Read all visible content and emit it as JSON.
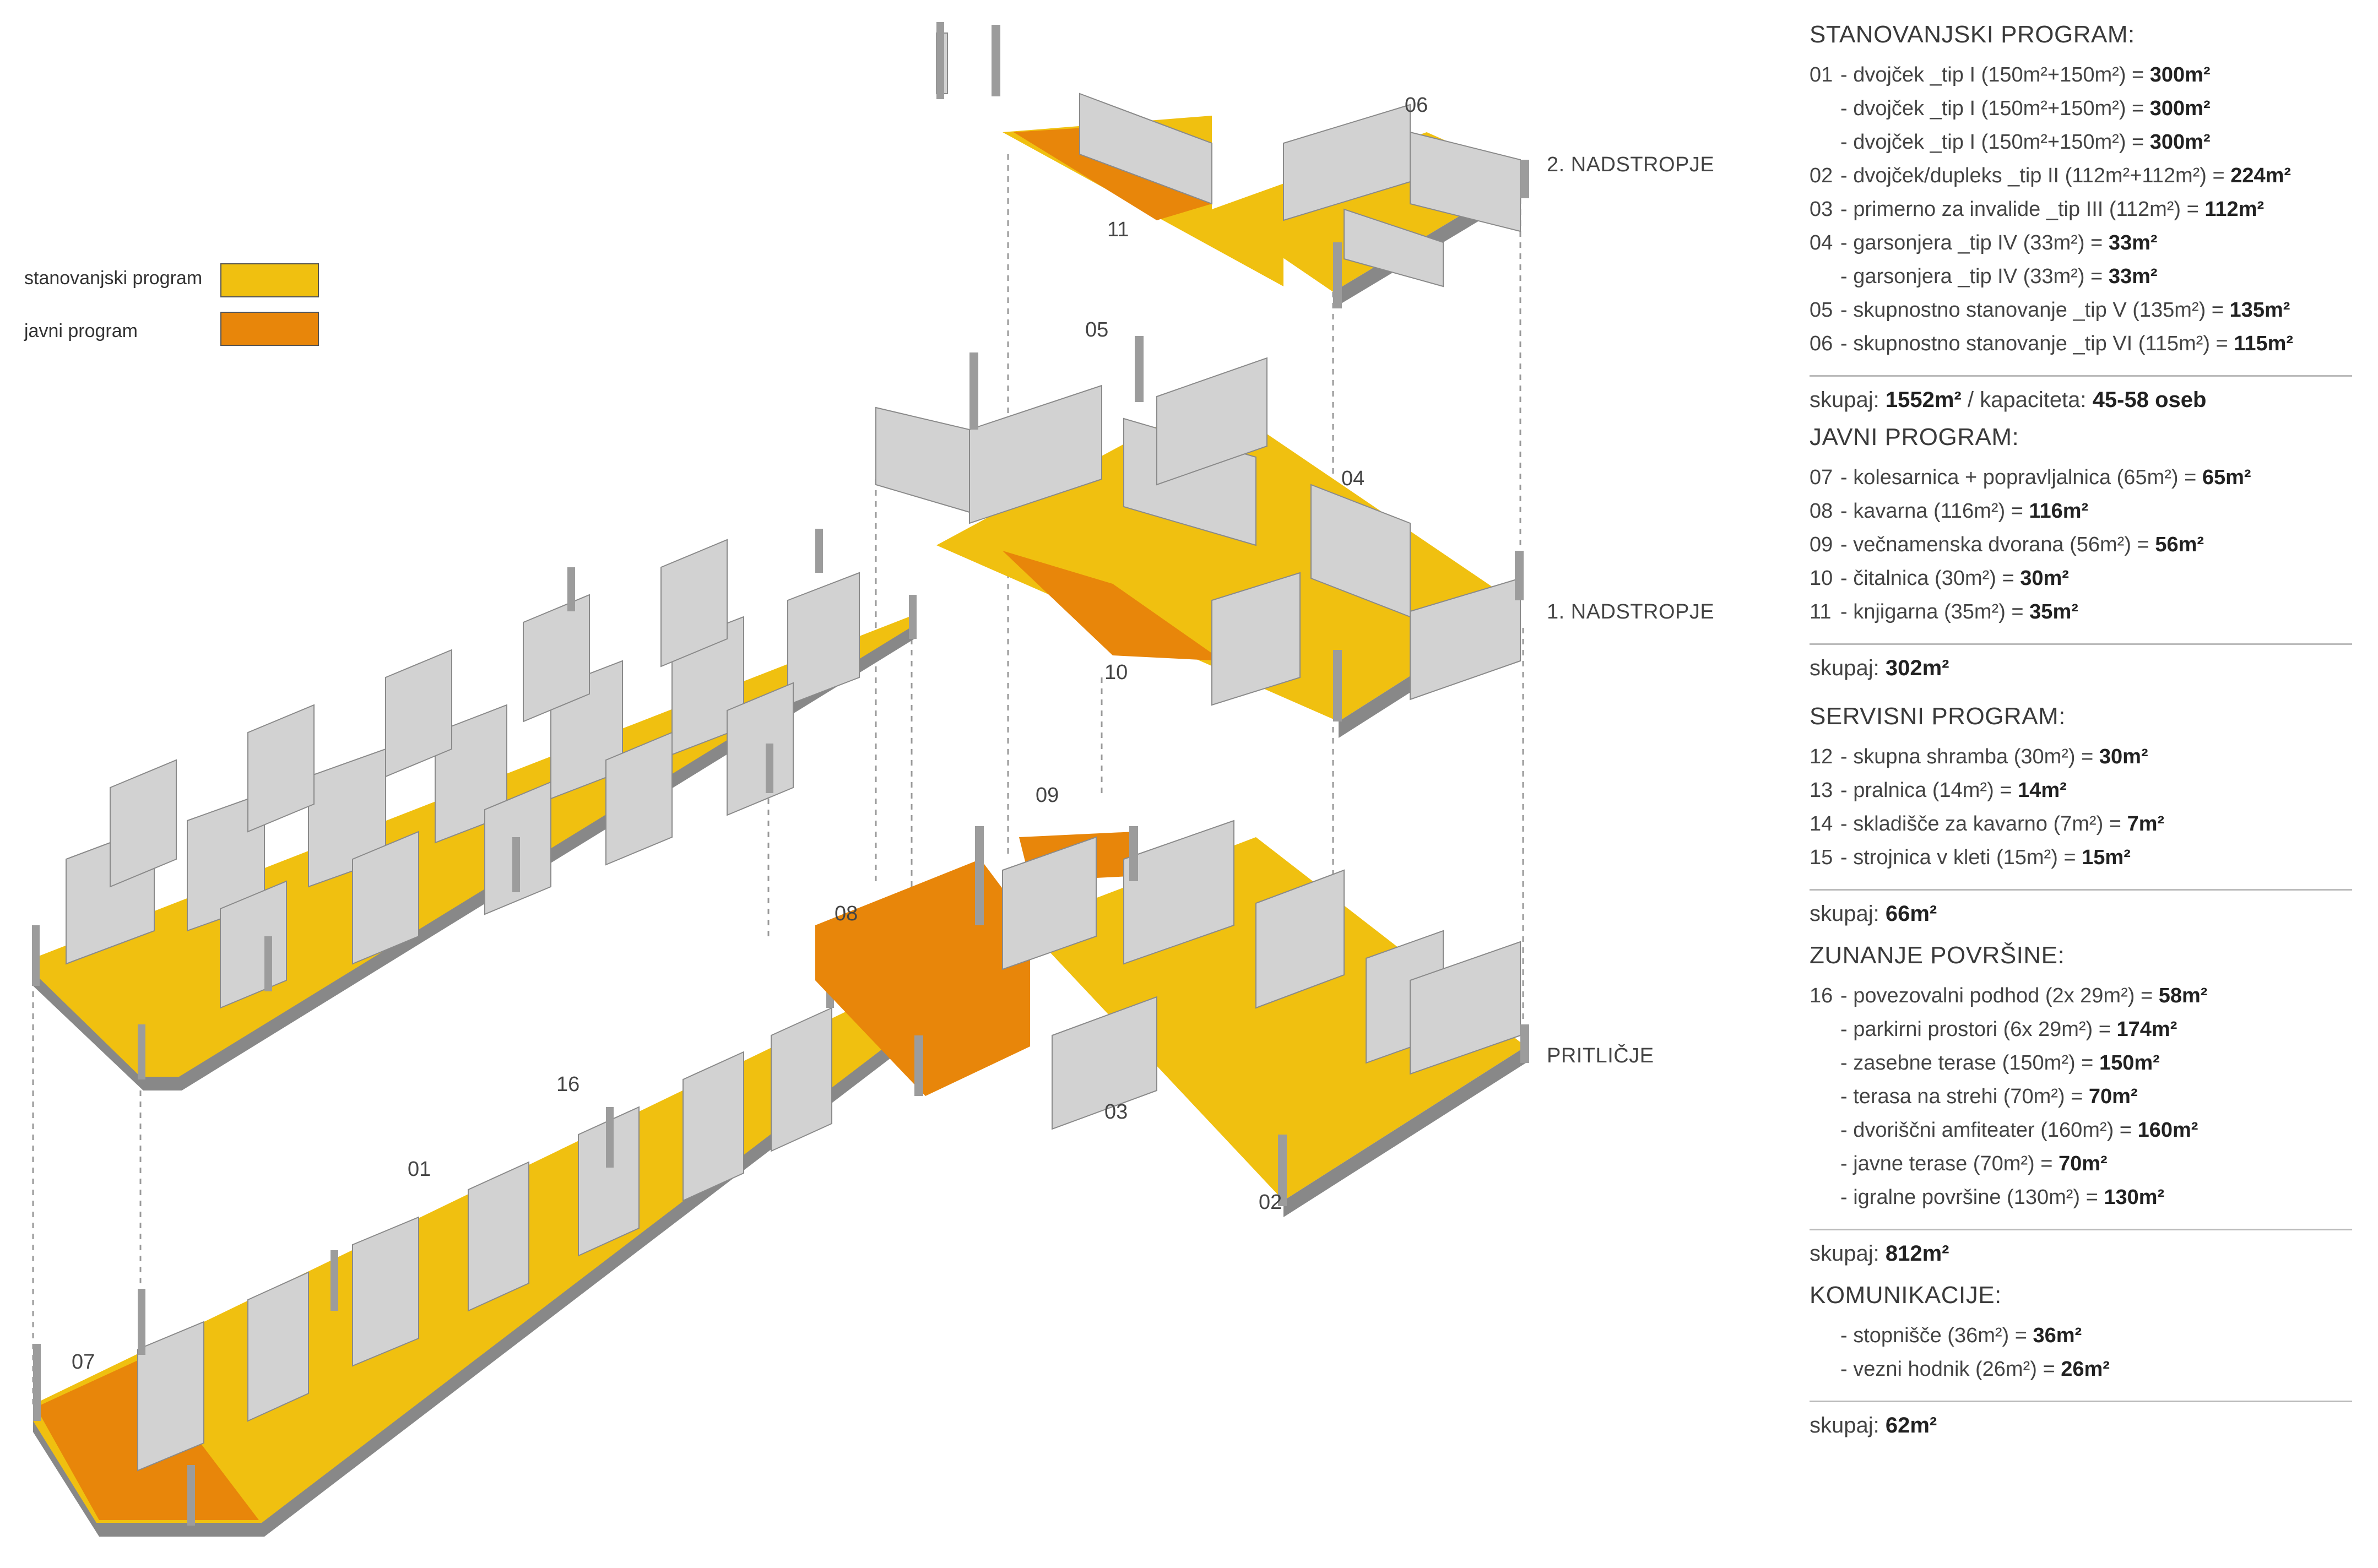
{
  "legend": {
    "items": [
      {
        "label": "stanovanjski program",
        "color": "#f0c010"
      },
      {
        "label": "javni program",
        "color": "#e8860a"
      }
    ]
  },
  "levels": {
    "second": "2. NADSTROPJE",
    "first": "1. NADSTROPJE",
    "ground": "PRITLIČJE"
  },
  "unit_numbers": [
    "01",
    "02",
    "03",
    "04",
    "05",
    "06",
    "07",
    "08",
    "09",
    "10",
    "11",
    "16"
  ],
  "colors": {
    "residential": "#f0c010",
    "public": "#e8860a",
    "wall": "#cfcfcf",
    "wall_dark": "#9c9c9c",
    "floor_edge": "#888888"
  },
  "schedule": {
    "housing": {
      "title": "STANOVANJSKI PROGRAM:",
      "rows": [
        {
          "num": "01",
          "text": "- dvojček _tip I (150m²+150m²) = ",
          "value": "300m²"
        },
        {
          "num": "",
          "text": "- dvojček _tip I (150m²+150m²) = ",
          "value": "300m²"
        },
        {
          "num": "",
          "text": "- dvojček _tip I (150m²+150m²) = ",
          "value": "300m²"
        },
        {
          "num": "02",
          "text": "- dvojček/dupleks _tip II (112m²+112m²) = ",
          "value": "224m²"
        },
        {
          "num": "03",
          "text": "- primerno za invalide _tip III (112m²) = ",
          "value": "112m²"
        },
        {
          "num": "04",
          "text": "- garsonjera _tip IV (33m²) = ",
          "value": "33m²"
        },
        {
          "num": "",
          "text": "- garsonjera _tip IV (33m²) = ",
          "value": "33m²"
        },
        {
          "num": "05",
          "text": "- skupnostno stanovanje _tip V (135m²) = ",
          "value": "135m²"
        },
        {
          "num": "06",
          "text": "- skupnostno stanovanje _tip VI (115m²) = ",
          "value": "115m²"
        }
      ],
      "total_label": "skupaj: ",
      "total_value": "1552m²",
      "total_extra": " / kapaciteta: ",
      "total_extra_value": "45-58 oseb"
    },
    "public": {
      "title": "JAVNI PROGRAM:",
      "rows": [
        {
          "num": "07",
          "text": "- kolesarnica + popravljalnica (65m²) = ",
          "value": "65m²"
        },
        {
          "num": "08",
          "text": "- kavarna (116m²) = ",
          "value": "116m²"
        },
        {
          "num": "09",
          "text": "- večnamenska dvorana (56m²) = ",
          "value": "56m²"
        },
        {
          "num": "10",
          "text": "- čitalnica (30m²) = ",
          "value": "30m²"
        },
        {
          "num": "11",
          "text": "- knjigarna (35m²) = ",
          "value": "35m²"
        }
      ],
      "total_label": "skupaj: ",
      "total_value": "302m²"
    },
    "service": {
      "title": "SERVISNI PROGRAM:",
      "rows": [
        {
          "num": "12",
          "text": "- skupna shramba (30m²) = ",
          "value": "30m²"
        },
        {
          "num": "13",
          "text": "- pralnica (14m²) = ",
          "value": "14m²"
        },
        {
          "num": "14",
          "text": "- skladišče za kavarno (7m²) = ",
          "value": "7m²"
        },
        {
          "num": "15",
          "text": "- strojnica v kleti (15m²) = ",
          "value": "15m²"
        }
      ],
      "total_label": "skupaj: ",
      "total_value": "66m²"
    },
    "outdoor": {
      "title": "ZUNANJE POVRŠINE:",
      "rows": [
        {
          "num": "16",
          "text": "- povezovalni podhod (2x 29m²) = ",
          "value": "58m²"
        },
        {
          "num": "",
          "text": "- parkirni prostori (6x 29m²) = ",
          "value": "174m²"
        },
        {
          "num": "",
          "text": "- zasebne terase (150m²) = ",
          "value": "150m²"
        },
        {
          "num": "",
          "text": "- terasa na strehi (70m²) = ",
          "value": "70m²"
        },
        {
          "num": "",
          "text": "- dvoriščni amfiteater (160m²) = ",
          "value": "160m²"
        },
        {
          "num": "",
          "text": "- javne terase (70m²) = ",
          "value": "70m²"
        },
        {
          "num": "",
          "text": "- igralne površine (130m²) = ",
          "value": "130m²"
        }
      ],
      "total_label": "skupaj: ",
      "total_value": "812m²"
    },
    "communication": {
      "title": "KOMUNIKACIJE:",
      "rows": [
        {
          "num": "",
          "text": "- stopnišče (36m²) = ",
          "value": "36m²"
        },
        {
          "num": "",
          "text": "- vezni hodnik (26m²) = ",
          "value": "26m²"
        }
      ],
      "total_label": "skupaj: ",
      "total_value": "62m²"
    }
  }
}
